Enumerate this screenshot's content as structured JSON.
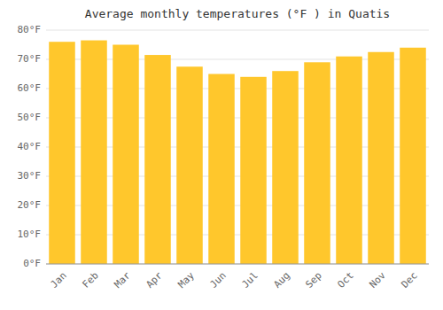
{
  "chart_data": {
    "type": "bar",
    "title": "Average monthly temperatures (°F ) in Quatis",
    "categories": [
      "Jan",
      "Feb",
      "Mar",
      "Apr",
      "May",
      "Jun",
      "Jul",
      "Aug",
      "Sep",
      "Oct",
      "Nov",
      "Dec"
    ],
    "values": [
      76,
      76.5,
      75,
      71.5,
      67.5,
      65,
      64,
      66,
      69,
      71,
      72.5,
      74
    ],
    "color": "#FFC72C",
    "ylim": [
      0,
      80
    ],
    "yticks": [
      {
        "value": 0,
        "label": "0°F"
      },
      {
        "value": 10,
        "label": "10°F"
      },
      {
        "value": 20,
        "label": "20°F"
      },
      {
        "value": 30,
        "label": "30°F"
      },
      {
        "value": 40,
        "label": "40°F"
      },
      {
        "value": 50,
        "label": "50°F"
      },
      {
        "value": 60,
        "label": "60°F"
      },
      {
        "value": 70,
        "label": "70°F"
      },
      {
        "value": 80,
        "label": "80°F"
      }
    ],
    "grid": true
  }
}
